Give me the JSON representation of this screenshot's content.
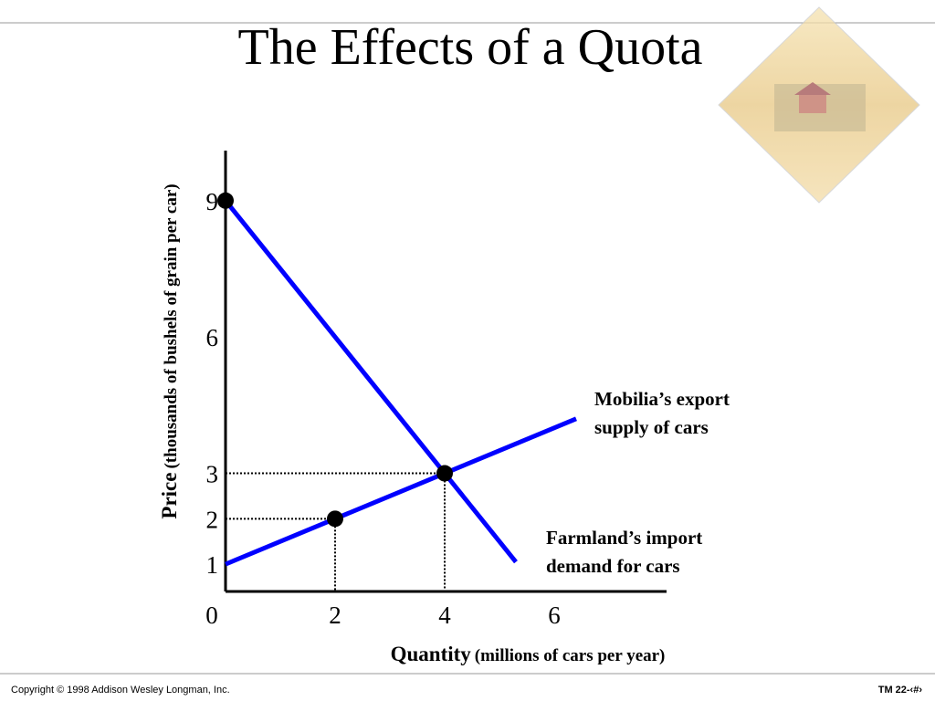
{
  "title": "The Effects of a Quota",
  "footer": {
    "copyright": "Copyright © 1998 Addison Wesley Longman, Inc.",
    "page": "TM 22-‹#›"
  },
  "chart_data": {
    "type": "line",
    "x_label": "Quantity",
    "x_label_unit": "(millions of cars per year)",
    "y_label": "Price",
    "y_label_unit": "(thousands of bushels of grain per car)",
    "xlim": [
      0,
      8
    ],
    "ylim": [
      0.4,
      10
    ],
    "xticks": [
      0,
      2,
      4,
      6
    ],
    "yticks": [
      1,
      2,
      3,
      6,
      9
    ],
    "series": [
      {
        "name": "Farmland’s import demand for cars",
        "color": "#0000ff",
        "x": [
          0,
          4,
          5.3
        ],
        "values": [
          9,
          3,
          1.05
        ]
      },
      {
        "name": "Mobilia’s export supply of cars",
        "color": "#0000ff",
        "x": [
          0,
          2,
          4,
          6.4
        ],
        "values": [
          1,
          2,
          3,
          4.2
        ]
      }
    ],
    "points": {
      "x": [
        0,
        2,
        4
      ],
      "values": [
        9,
        2,
        3
      ],
      "color": "#000000"
    }
  }
}
